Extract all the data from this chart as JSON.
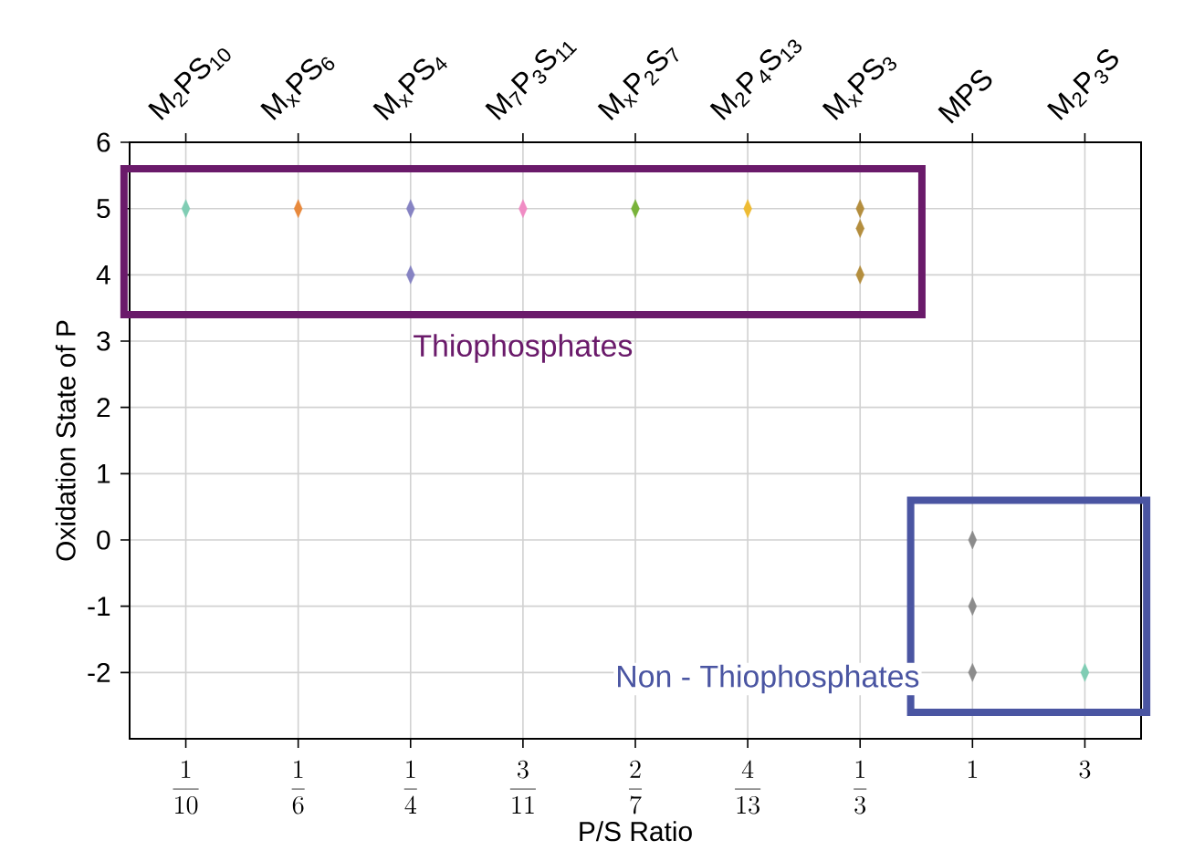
{
  "chart_data": {
    "type": "scatter",
    "xlabel": "P/S Ratio",
    "ylabel": "Oxidation State of P",
    "categories": [
      "\\frac{1}{10}",
      "\\frac{1}{6}",
      "\\frac{1}{4}",
      "\\frac{3}{11}",
      "\\frac{2}{7}",
      "\\frac{4}{13}",
      "\\frac{1}{3}",
      "1",
      "3"
    ],
    "ylim": [
      -3,
      6
    ],
    "yticks": [
      -2,
      -1,
      0,
      1,
      2,
      3,
      4,
      5,
      6
    ],
    "grid": true,
    "marker": "diamond",
    "annotations": [
      "Thiophosphates",
      "Non - Thiophosphates",
      {
        "text": "M$_{2}$PS$_{10}$",
        "x": "\\frac{1}{10}"
      },
      {
        "text": "M$_{x}$PS$_{6}$",
        "x": "\\frac{1}{6}"
      },
      {
        "text": "M$_{x}$PS$_{4}$",
        "x": "\\frac{1}{4}"
      },
      {
        "text": "M$_{7}$P$_{3}$S$_{11}$",
        "x": "\\frac{3}{11}"
      },
      {
        "text": "M$_{x}$P$_{2}$S$_{7}$",
        "x": "\\frac{2}{7}"
      },
      {
        "text": "M$_{2}$P$_{4}$S$_{13}$",
        "x": "\\frac{4}{13}"
      },
      {
        "text": "M$_{x}$PS$_{3}$",
        "x": "\\frac{1}{3}"
      },
      {
        "text": "MPS",
        "x": "1"
      },
      {
        "text": "M$_{2}$P$_{3}$S",
        "x": "3"
      }
    ],
    "series": [
      {
        "color": "#80cdb4",
        "x": [
          "\\frac{1}{10}"
        ],
        "values": [
          5
        ]
      },
      {
        "color": "#e8893c",
        "x": [
          "\\frac{1}{6}"
        ],
        "values": [
          5
        ]
      },
      {
        "color": "#8683c3",
        "x": [
          "\\frac{1}{4}",
          "\\frac{1}{4}"
        ],
        "values": [
          5,
          4
        ]
      },
      {
        "color": "#f08cc4",
        "x": [
          "\\frac{3}{11}"
        ],
        "values": [
          5
        ]
      },
      {
        "color": "#79b33a",
        "x": [
          "\\frac{2}{7}"
        ],
        "values": [
          5
        ]
      },
      {
        "color": "#eebb33",
        "x": [
          "\\frac{4}{13}"
        ],
        "values": [
          5
        ]
      },
      {
        "color": "#b48e3e",
        "x": [
          "\\frac{1}{3}",
          "\\frac{1}{3}",
          "\\frac{1}{3}"
        ],
        "values": [
          5,
          4.7,
          4
        ]
      },
      {
        "color": "#8c8c8c",
        "x": [
          "1",
          "1",
          "1"
        ],
        "values": [
          0,
          -1,
          -2
        ]
      },
      {
        "color": "#80cdb4",
        "x": [
          "3"
        ],
        "values": [
          -2
        ]
      }
    ]
  }
}
